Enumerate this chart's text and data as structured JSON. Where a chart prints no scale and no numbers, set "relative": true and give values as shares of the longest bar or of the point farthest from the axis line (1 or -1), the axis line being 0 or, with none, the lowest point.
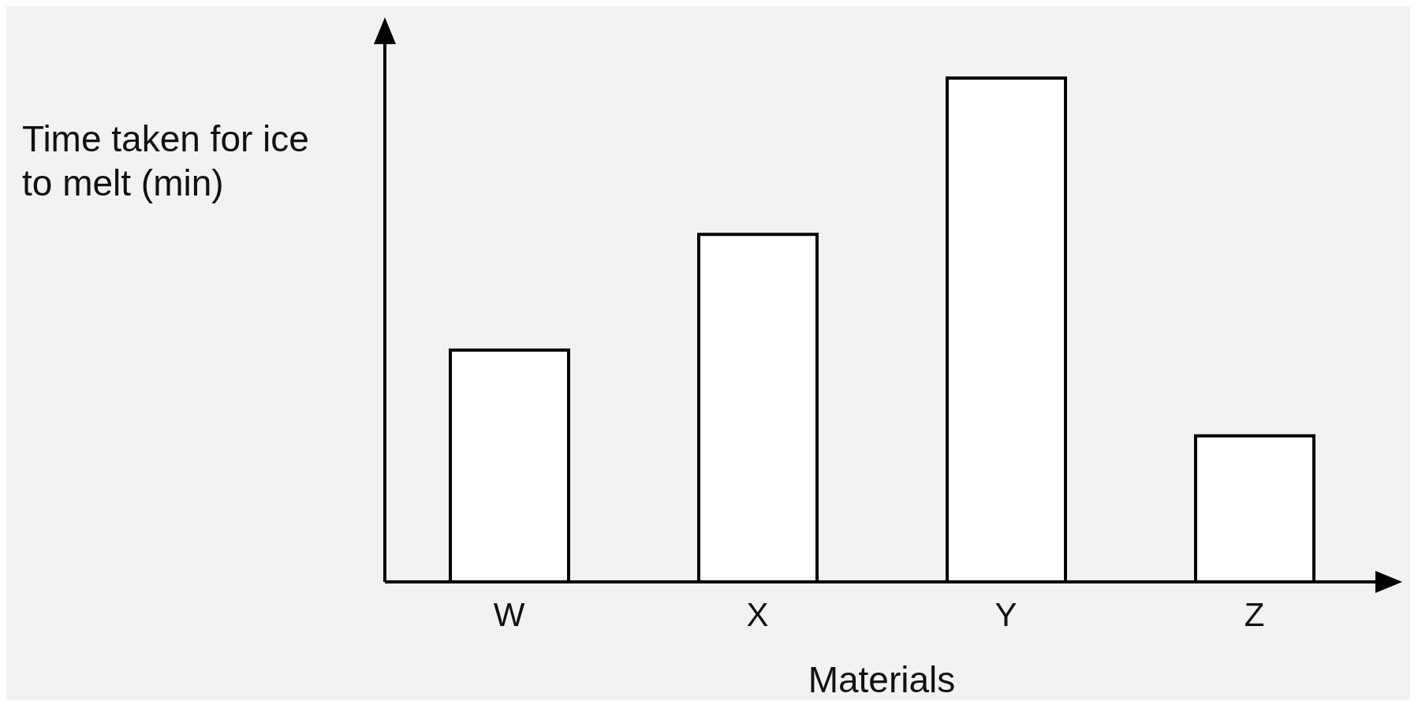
{
  "chart_data": {
    "type": "bar",
    "xlabel": "Materials",
    "ylabel": "Time taken for ice to melt (min)",
    "categories": [
      "W",
      "X",
      "Y",
      "Z"
    ],
    "values": [
      0.46,
      0.69,
      1,
      0.29
    ],
    "color": "#ffffff",
    "relative": true,
    "grid": false,
    "legend": false
  }
}
